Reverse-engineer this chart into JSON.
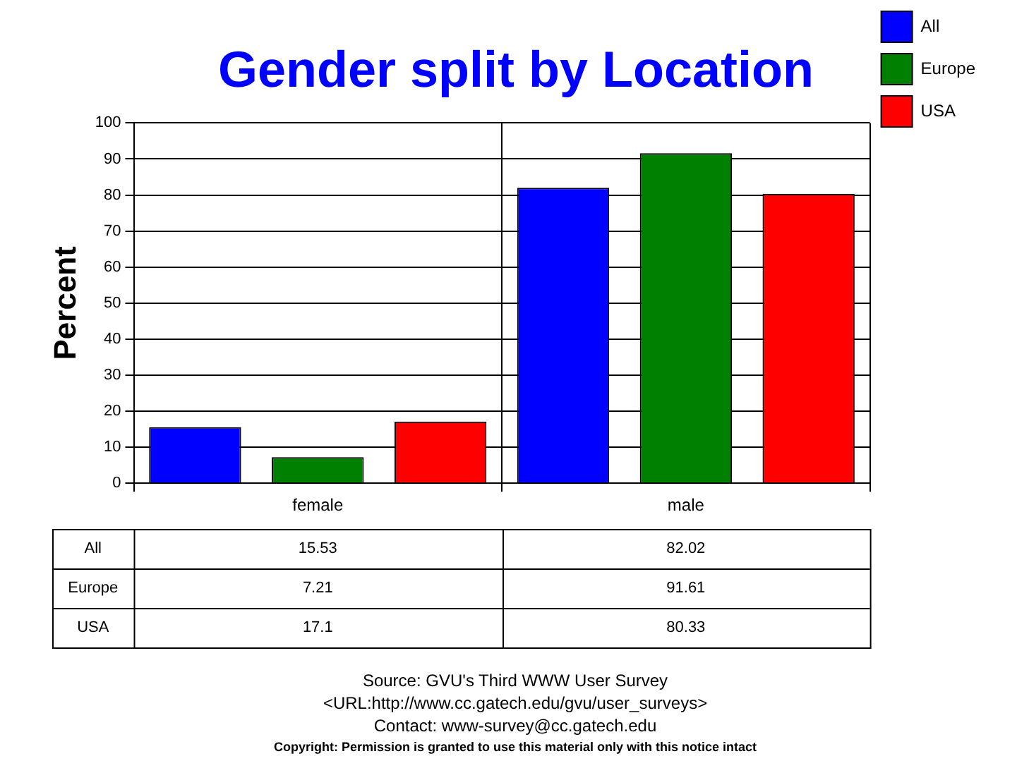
{
  "chart_data": {
    "type": "bar",
    "title": "Gender split by Location",
    "ylabel": "Percent",
    "categories": [
      "female",
      "male"
    ],
    "series": [
      {
        "name": "All",
        "color": "#0000ff",
        "values": [
          15.53,
          82.02
        ]
      },
      {
        "name": "Europe",
        "color": "#008000",
        "values": [
          7.21,
          91.61
        ]
      },
      {
        "name": "USA",
        "color": "#ff0000",
        "values": [
          17.1,
          80.33
        ]
      }
    ],
    "ylim": [
      0,
      100
    ],
    "yticks": [
      0,
      10,
      20,
      30,
      40,
      50,
      60,
      70,
      80,
      90,
      100
    ],
    "grid": true,
    "legend": "top right",
    "data_labels": true,
    "annotations": [
      "Source: GVU's Third WWW User Survey",
      "<URL:http://www.cc.gatech.edu/gvu/user_surveys>",
      "Contact: www-survey@cc.gatech.edu",
      "Copyright: Permission is granted to use this material only with this notice intact"
    ]
  }
}
